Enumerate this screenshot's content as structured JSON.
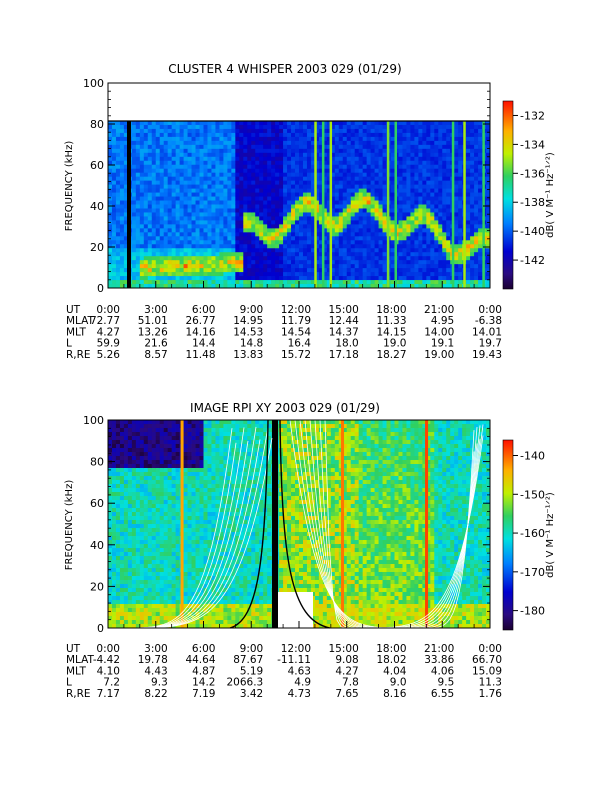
{
  "chart_data": [
    {
      "type": "heatmap",
      "title": "CLUSTER 4 WHISPER 2003 029 (01/29)",
      "ylabel": "FREQUENCY (kHz)",
      "ylim": [
        0,
        100
      ],
      "yticks": [
        "0",
        "20",
        "40",
        "60",
        "80",
        "100"
      ],
      "data_top_khz": 80,
      "colorbar": {
        "label": "dB( V M⁻¹ Hz⁻¹ᐟ²)",
        "range": [
          -144,
          -131
        ],
        "ticks": [
          "-132",
          "-134",
          "-136",
          "-138",
          "-140",
          "-142"
        ],
        "tick_values": [
          -132,
          -134,
          -136,
          -138,
          -140,
          -142
        ]
      },
      "ephemeris": {
        "labels": [
          "UT",
          "MLAT",
          "MLT",
          "L",
          "R,RE"
        ],
        "times": [
          "0:00",
          "3:00",
          "6:00",
          "9:00",
          "12:00",
          "15:00",
          "18:00",
          "21:00",
          "0:00"
        ],
        "rows": [
          [
            "72.77",
            "51.01",
            "26.77",
            "14.95",
            "11.79",
            "12.44",
            "11.33",
            "4.95",
            "-6.38"
          ],
          [
            "4.27",
            "13.26",
            "14.16",
            "14.53",
            "14.54",
            "14.37",
            "14.15",
            "14.00",
            "14.01"
          ],
          [
            "59.9",
            "21.6",
            "14.4",
            "14.8",
            "16.4",
            "18.0",
            "19.0",
            "19.1",
            "19.7"
          ],
          [
            "5.26",
            "8.57",
            "11.48",
            "13.83",
            "15.72",
            "17.18",
            "18.27",
            "19.00",
            "19.43"
          ]
        ]
      }
    },
    {
      "type": "heatmap",
      "title": "IMAGE RPI XY 2003 029 (01/29)",
      "ylabel": "FREQUENCY (kHz)",
      "ylim": [
        0,
        100
      ],
      "yticks": [
        "0",
        "20",
        "40",
        "60",
        "80",
        "100"
      ],
      "colorbar": {
        "label": "dB( V M⁻¹ Hz⁻¹ᐟ²)",
        "range": [
          -185,
          -136
        ],
        "ticks": [
          "-140",
          "-150",
          "-160",
          "-170",
          "-180"
        ],
        "tick_values": [
          -140,
          -150,
          -160,
          -170,
          -180
        ]
      },
      "ephemeris": {
        "labels": [
          "UT",
          "MLAT",
          "MLT",
          "L",
          "R,RE"
        ],
        "times": [
          "0:00",
          "3:00",
          "6:00",
          "9:00",
          "12:00",
          "15:00",
          "18:00",
          "21:00",
          "0:00"
        ],
        "rows": [
          [
            "-4.42",
            "19.78",
            "44.64",
            "87.67",
            "-11.11",
            "9.08",
            "18.02",
            "33.86",
            "66.70"
          ],
          [
            "4.10",
            "4.43",
            "4.87",
            "5.19",
            "4.63",
            "4.27",
            "4.04",
            "4.06",
            "15.09"
          ],
          [
            "7.2",
            "9.3",
            "14.2",
            "2066.3",
            "4.9",
            "7.8",
            "9.0",
            "9.5",
            "11.3"
          ],
          [
            "7.17",
            "8.22",
            "7.19",
            "3.42",
            "4.73",
            "7.65",
            "8.16",
            "6.55",
            "1.76"
          ]
        ]
      }
    }
  ]
}
